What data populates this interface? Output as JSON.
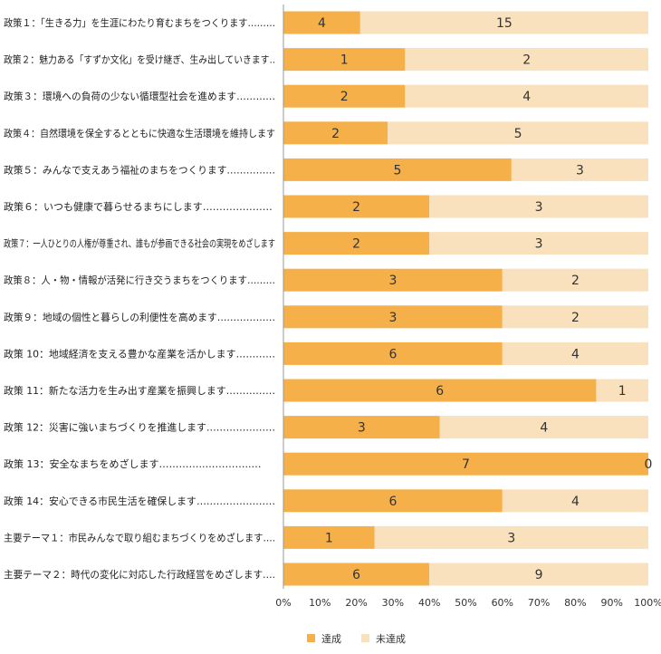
{
  "chart_data": {
    "type": "bar",
    "orientation": "horizontal",
    "stacked": "percent",
    "categories": [
      "政策１：「生きる力」を生涯にわたり育むまちをつくります………",
      "政策２：魅力ある「すずか文化」を受け継ぎ、生み出していきます‥",
      "政策３：環境への負荷の少ない循環型社会を進めます…………",
      "政策４：自然環境を保全するとともに快適な生活環境を維持します",
      "政策５：みんなで支えあう福祉のまちをつくります……………",
      "政策６：いつも健康で暮らせるまちにします…………………",
      "政策７：一人ひとりの人権が尊重され、誰もが参画できる社会の実現をめざします",
      "政策８：人・物・情報が活発に行き交うまちをつくります………",
      "政策９：地域の個性と暮らしの利便性を高めます………………",
      "政策 10：地域経済を支える豊かな産業を活かします…………",
      "政策 11：新たな活力を生み出す産業を振興します……………",
      "政策 12：災害に強いまちづくりを推進します…………………",
      "政策 13：安全なまちをめざします…………..…………..…",
      "政策 14：安心できる市民生活を確保します……………………",
      "主要テーマ１：市民みんなで取り組むまちづくりをめざします….",
      "主要テーマ２：時代の変化に対応した行政経営をめざします…."
    ],
    "series": [
      {
        "name": "達成",
        "color": "#f5b04a",
        "values": [
          4,
          1,
          2,
          2,
          5,
          2,
          2,
          3,
          3,
          6,
          6,
          3,
          7,
          6,
          1,
          6
        ]
      },
      {
        "name": "未達成",
        "color": "#f8e1bc",
        "values": [
          15,
          2,
          4,
          5,
          3,
          3,
          3,
          2,
          2,
          4,
          1,
          4,
          0,
          4,
          3,
          9
        ]
      }
    ],
    "x_ticks": [
      "0%",
      "10%",
      "20%",
      "30%",
      "40%",
      "50%",
      "60%",
      "70%",
      "80%",
      "90%",
      "100%"
    ],
    "xlim": [
      0,
      100
    ],
    "legend": "bottom-center",
    "grid": false
  }
}
